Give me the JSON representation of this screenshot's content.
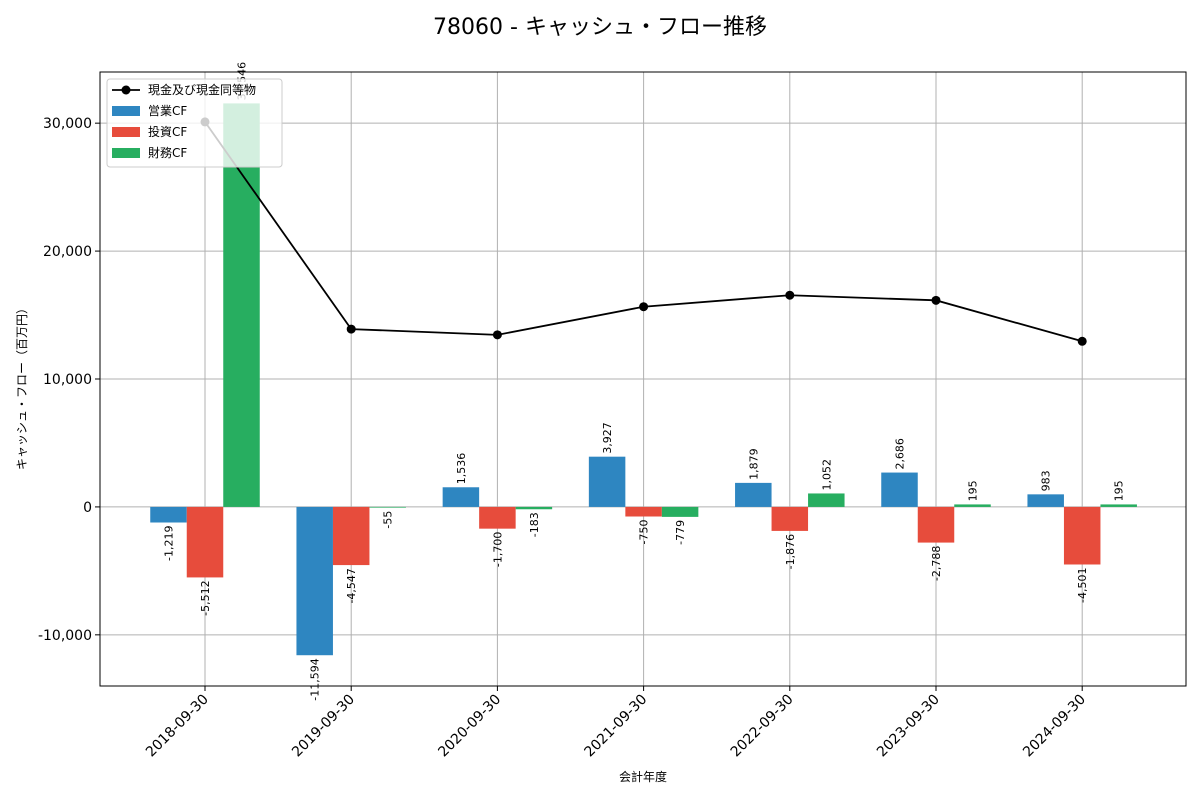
{
  "chart_data": {
    "type": "bar",
    "title": "78060 - キャッシュ・フロー推移",
    "xlabel": "会計年度",
    "ylabel": "キャッシュ・フロー（百万円）",
    "categories": [
      "2018-09-30",
      "2019-09-30",
      "2020-09-30",
      "2021-09-30",
      "2022-09-30",
      "2023-09-30",
      "2024-09-30"
    ],
    "ylim": [
      -14000,
      34000
    ],
    "yticks": [
      -10000,
      0,
      10000,
      20000,
      30000
    ],
    "ytick_labels": [
      "-10,000",
      "0",
      "10,000",
      "20,000",
      "30,000"
    ],
    "grid": true,
    "legend_position": "top-left",
    "line_series": {
      "name": "現金及び現金同等物",
      "color": "#000000",
      "values": [
        30100,
        13900,
        13450,
        15650,
        16550,
        16150,
        12950
      ]
    },
    "series": [
      {
        "name": "営業CF",
        "color": "#2e86c1",
        "values": [
          -1219,
          -11594,
          1536,
          3927,
          1879,
          2686,
          983
        ],
        "labels": [
          "-1,219",
          "-11,594",
          "1,536",
          "3,927",
          "1,879",
          "2,686",
          "983"
        ]
      },
      {
        "name": "投資CF",
        "color": "#e74c3c",
        "values": [
          -5512,
          -4547,
          -1700,
          -750,
          -1876,
          -2788,
          -4501
        ],
        "labels": [
          "-5,512",
          "-4,547",
          "-1,700",
          "-750",
          "-1,876",
          "-2,788",
          "-4,501"
        ]
      },
      {
        "name": "財務CF",
        "color": "#27ae60",
        "values": [
          31546,
          -55,
          -183,
          -779,
          1052,
          195,
          195
        ],
        "labels": [
          "31,546",
          "-55",
          "-183",
          "-779",
          "1,052",
          "195",
          "195"
        ]
      }
    ]
  }
}
